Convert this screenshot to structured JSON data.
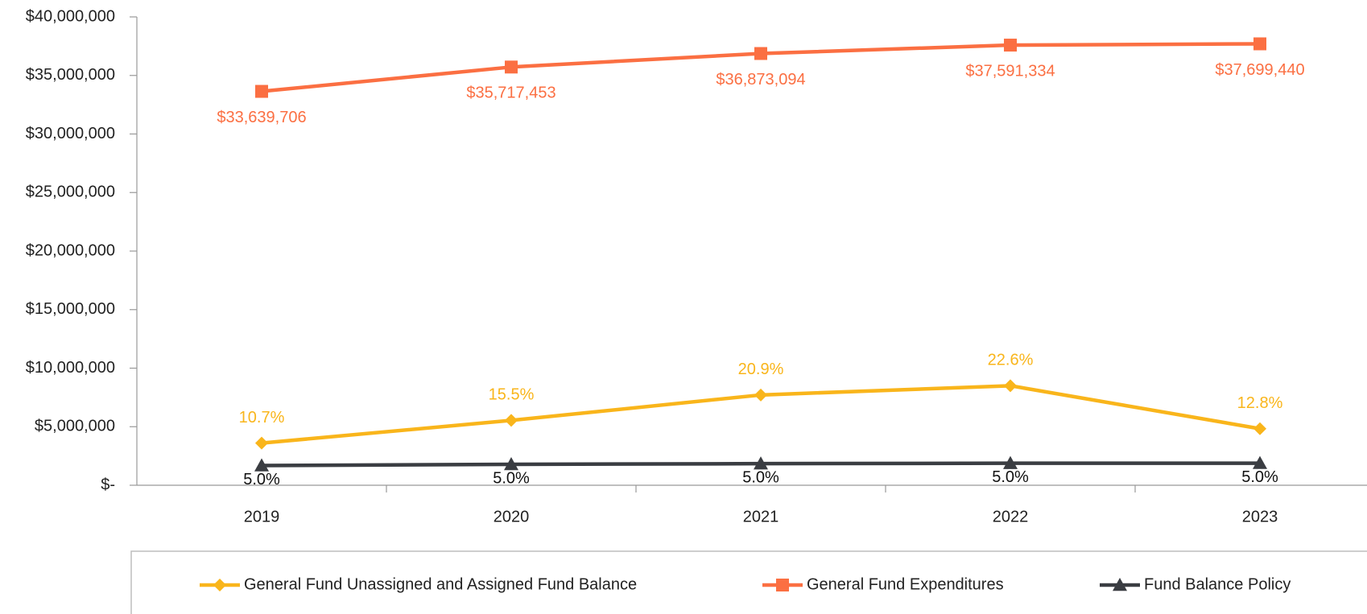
{
  "chart_data": {
    "type": "line",
    "categories": [
      "2019",
      "2020",
      "2021",
      "2022",
      "2023"
    ],
    "ylim": [
      0,
      40000000
    ],
    "yticks": [
      {
        "value": 0,
        "label": "$-"
      },
      {
        "value": 5000000,
        "label": "$5,000,000"
      },
      {
        "value": 10000000,
        "label": "$10,000,000"
      },
      {
        "value": 15000000,
        "label": "$15,000,000"
      },
      {
        "value": 20000000,
        "label": "$20,000,000"
      },
      {
        "value": 25000000,
        "label": "$25,000,000"
      },
      {
        "value": 30000000,
        "label": "$30,000,000"
      },
      {
        "value": 35000000,
        "label": "$35,000,000"
      },
      {
        "value": 40000000,
        "label": "$40,000,000"
      }
    ],
    "legend": "bottom",
    "series": [
      {
        "name": "General Fund Unassigned and Assigned Fund Balance",
        "color": "#f9b51b",
        "marker": "diamond",
        "values": [
          3600000,
          5540000,
          7710000,
          8500000,
          4830000
        ],
        "point_labels": [
          "10.7%",
          "15.5%",
          "20.9%",
          "22.6%",
          "12.8%"
        ],
        "label_position": "above"
      },
      {
        "name": "General Fund Expenditures",
        "color": "#fb6f42",
        "marker": "square",
        "values": [
          33639706,
          35717453,
          36873094,
          37591334,
          37699440
        ],
        "value_labels": [
          "$33,639,706",
          "$35,717,453",
          "$36,873,094",
          "$37,591,334",
          "$37,699,440"
        ],
        "label_position": "below"
      },
      {
        "name": "Fund Balance Policy",
        "color": "#3a3d42",
        "marker": "triangle",
        "values": [
          1682000,
          1786000,
          1844000,
          1880000,
          1885000
        ],
        "point_labels": [
          "5.0%",
          "5.0%",
          "5.0%",
          "5.0%",
          "5.0%"
        ],
        "label_position": "below-near"
      }
    ]
  }
}
